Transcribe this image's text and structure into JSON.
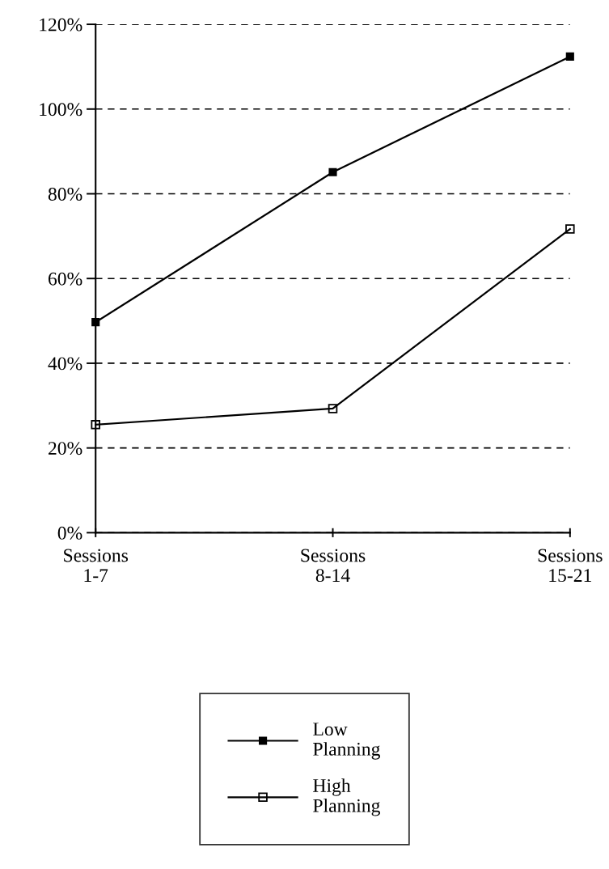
{
  "chart_data": {
    "type": "line",
    "categories": [
      "Sessions\n1-7",
      "Sessions\n8-14",
      "Sessions\n15-21"
    ],
    "series": [
      {
        "name": "Low\nPlanning",
        "color": "#000000",
        "marker": "square",
        "values": [
          49.7,
          85.1,
          112.4
        ]
      },
      {
        "name": "High\nPlanning",
        "color": "#000000",
        "marker": "square_open",
        "values": [
          25.5,
          29.3,
          71.7
        ]
      }
    ],
    "ylim": [
      0,
      120
    ],
    "yticks": [
      {
        "value": 0,
        "label": "0%"
      },
      {
        "value": 20,
        "label": "20%"
      },
      {
        "value": 40,
        "label": "40%"
      },
      {
        "value": 60,
        "label": "60%"
      },
      {
        "value": 80,
        "label": "80%"
      },
      {
        "value": 100,
        "label": "100%"
      },
      {
        "value": 120,
        "label": "120%"
      }
    ],
    "grid": "y",
    "line_style": "solid",
    "legend": "bottom"
  }
}
